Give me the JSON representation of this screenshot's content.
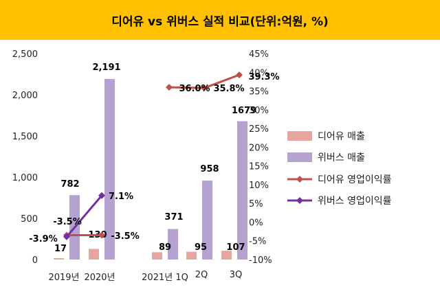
{
  "title": "디어유 vs 위버스 실적 비교(단위:억원, %)",
  "chart_data": {
    "type": "bar",
    "title": "디어유 vs 위버스 실적 비교(단위:억원, %)",
    "categories": [
      "2019년",
      "2020년",
      "2021년 1Q",
      "2Q",
      "3Q"
    ],
    "left_axis": {
      "min": 0,
      "max": 2500,
      "ticks": [
        "0",
        "500",
        "1,000",
        "1,500",
        "2,000",
        "2,500"
      ]
    },
    "right_axis": {
      "min": -10,
      "max": 45,
      "ticks": [
        "-10%",
        "-5%",
        "0%",
        "5%",
        "10%",
        "15%",
        "20%",
        "25%",
        "30%",
        "35%",
        "40%",
        "45%"
      ]
    },
    "series": [
      {
        "name": "디어유 매출",
        "type": "bar",
        "axis": "left",
        "color": "#e6a5a0",
        "values": [
          17,
          130,
          89,
          95,
          107
        ],
        "labels": [
          "17",
          "130",
          "89",
          "95",
          "107"
        ]
      },
      {
        "name": "위버스 매출",
        "type": "bar",
        "axis": "left",
        "color": "#b4a3d1",
        "values": [
          782,
          2191,
          371,
          958,
          1679
        ],
        "labels": [
          "782",
          "2,191",
          "371",
          "958",
          "1679"
        ]
      },
      {
        "name": "디어유 영업이익률",
        "type": "line",
        "axis": "right",
        "color": "#c0504d",
        "values": [
          -3.5,
          -3.5,
          36.0,
          35.8,
          39.3
        ],
        "labels": [
          "-3.5%",
          "-3.5%",
          "36.0%",
          "35.8%",
          "39.3%"
        ]
      },
      {
        "name": "위버스 영업이익률",
        "type": "line",
        "axis": "right",
        "color": "#7030a0",
        "values": [
          -3.9,
          7.1,
          null,
          null,
          null
        ],
        "labels": [
          "-3.9%",
          "7.1%",
          "",
          "",
          ""
        ]
      }
    ],
    "legend_position": "right",
    "grid": false
  }
}
